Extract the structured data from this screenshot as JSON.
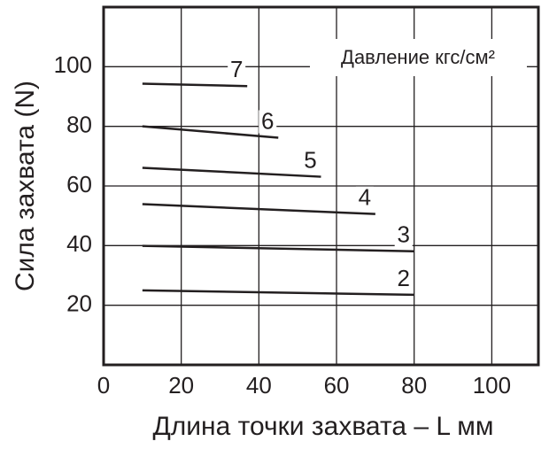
{
  "chart_data": {
    "type": "line",
    "annotation": "Давление кгс/см²",
    "x_label": "Длина точки захвата – L мм",
    "y_label": "Сила захвата (N)",
    "xlim": [
      0,
      112
    ],
    "ylim": [
      0,
      120
    ],
    "xticks": [
      0,
      20,
      40,
      60,
      80,
      100
    ],
    "yticks": [
      20,
      40,
      60,
      80,
      100
    ],
    "grid": true,
    "series": [
      {
        "name": "7",
        "color": "#231f20",
        "x": [
          10,
          37
        ],
        "values": [
          94.3,
          93.5
        ]
      },
      {
        "name": "6",
        "color": "#231f20",
        "x": [
          10,
          45
        ],
        "values": [
          80,
          76.2
        ]
      },
      {
        "name": "5",
        "color": "#231f20",
        "x": [
          10,
          56
        ],
        "values": [
          66.1,
          63.1
        ]
      },
      {
        "name": "4",
        "color": "#231f20",
        "x": [
          10,
          70
        ],
        "values": [
          53.9,
          50.6
        ]
      },
      {
        "name": "3",
        "color": "#231f20",
        "x": [
          10,
          80
        ],
        "values": [
          39.9,
          38.1
        ]
      },
      {
        "name": "2",
        "color": "#231f20",
        "x": [
          10,
          80
        ],
        "values": [
          25,
          23.5
        ]
      }
    ]
  }
}
